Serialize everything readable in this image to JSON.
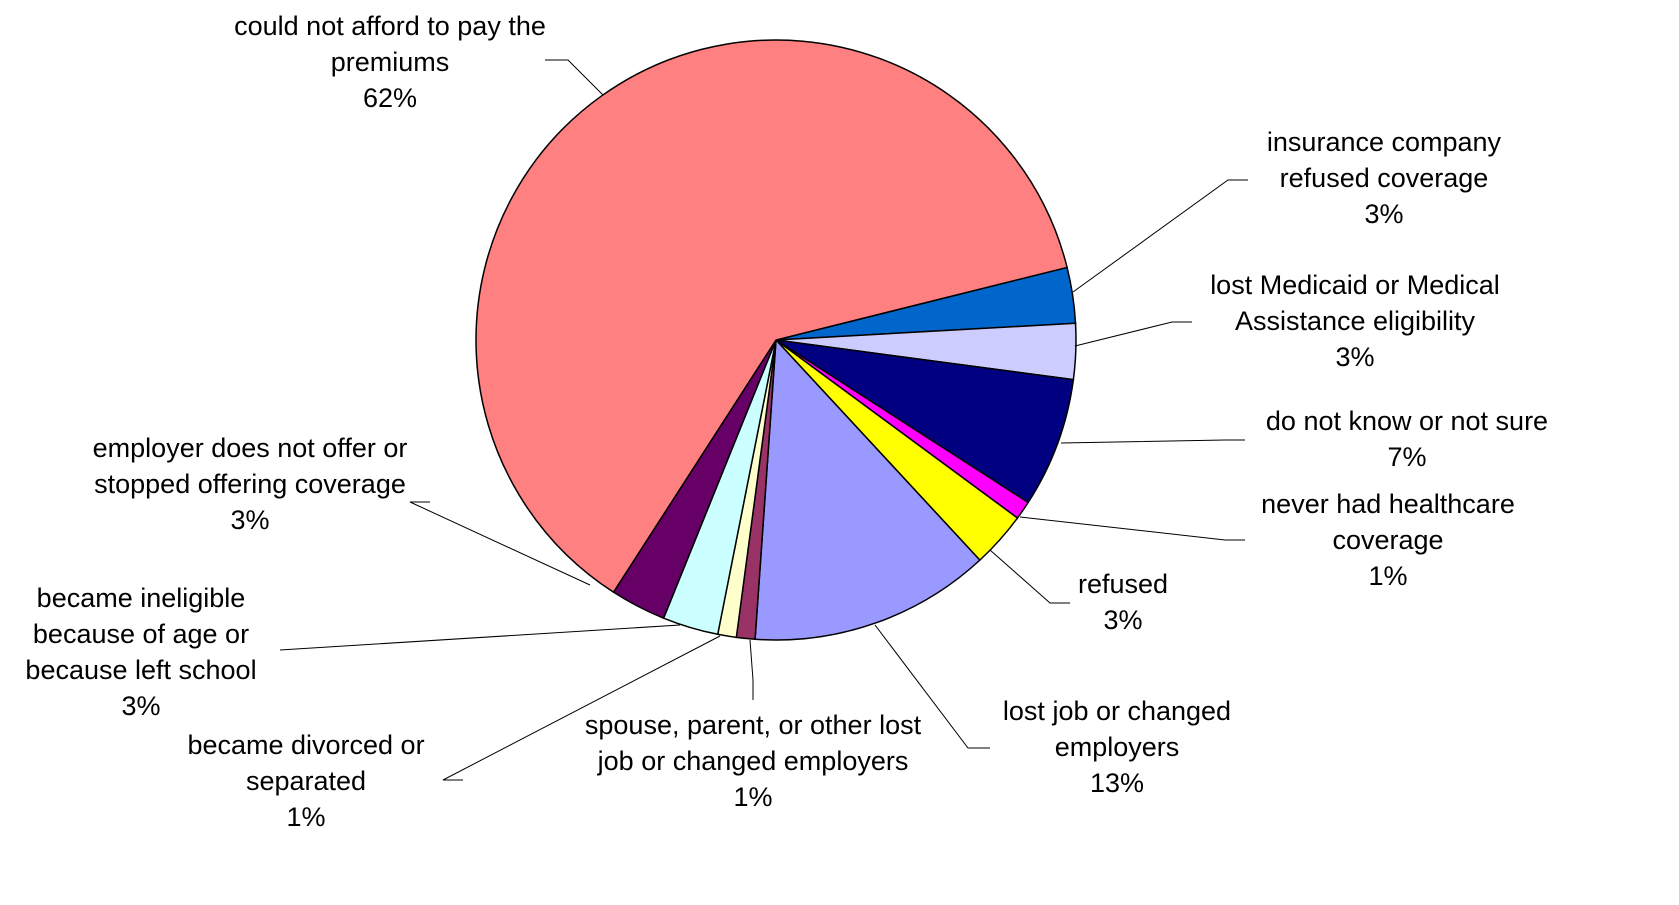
{
  "chart_data": {
    "type": "pie",
    "categories": [
      "insurance company refused coverage",
      "lost Medicaid or Medical Assistance eligibility",
      "do not know or not sure",
      "never had healthcare coverage",
      "refused",
      "lost job or changed employers",
      "spouse, parent, or other lost job or changed employers",
      "became divorced or separated",
      "became ineligible because of age or because left school",
      "employer does not offer or stopped offering coverage",
      "could not afford to pay the premiums"
    ],
    "values": [
      3,
      3,
      7,
      1,
      3,
      13,
      1,
      1,
      3,
      3,
      62
    ],
    "value_labels": [
      "3%",
      "3%",
      "7%",
      "1%",
      "3%",
      "13%",
      "1%",
      "1%",
      "3%",
      "3%",
      "62%"
    ],
    "colors": [
      "#0066CC",
      "#CCCCFF",
      "#000080",
      "#FF00FF",
      "#FFFF00",
      "#9999FF",
      "#993366",
      "#FFFFCC",
      "#CCFFFF",
      "#660066",
      "#FF8080"
    ]
  }
}
